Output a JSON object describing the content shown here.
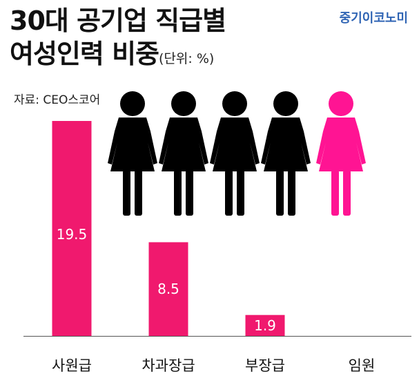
{
  "title": {
    "line1": "30대 공기업 직급별",
    "line2": "여성인력 비중",
    "unit": "(단위: %)"
  },
  "brand": "중기이코노미",
  "source": "자료: CEO스코어",
  "colors": {
    "bar": "#f0196e",
    "figure_dark": "#000000",
    "figure_highlight": "#ff1493",
    "axis": "#555555"
  },
  "chart_data": {
    "type": "bar",
    "categories": [
      "사원급",
      "차과장급",
      "부장급",
      "임원"
    ],
    "values": [
      19.5,
      8.5,
      1.9,
      null
    ],
    "value_labels": [
      "19.5",
      "8.5",
      "1.9",
      ""
    ],
    "ylim": [
      0,
      20
    ],
    "grid": false,
    "legend": "none"
  },
  "icons": [
    "woman-icon",
    "woman-icon",
    "woman-icon",
    "woman-icon",
    "woman-icon-highlighted"
  ]
}
